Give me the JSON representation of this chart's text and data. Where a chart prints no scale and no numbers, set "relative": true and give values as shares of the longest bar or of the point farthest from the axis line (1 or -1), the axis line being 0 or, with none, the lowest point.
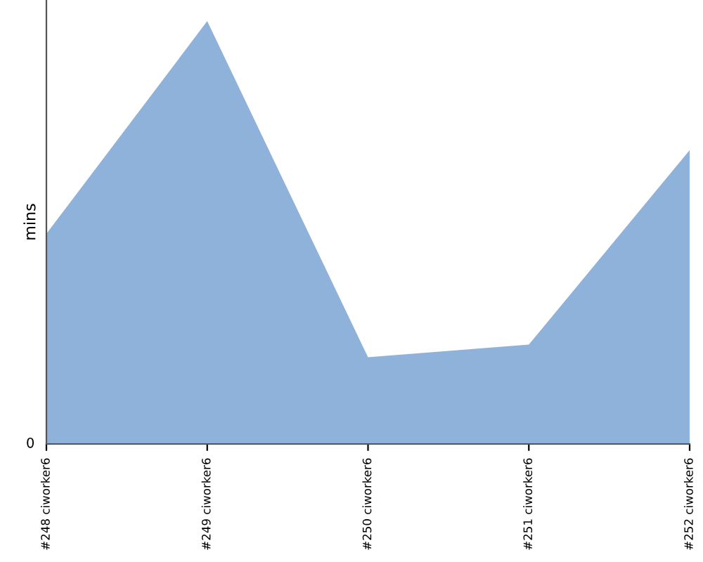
{
  "chart_data": {
    "type": "area",
    "ylabel": "mins",
    "relative": true,
    "categories": [
      "#248 ciworker6",
      "#249 ciworker6",
      "#250 ciworker6",
      "#251 ciworker6",
      "#252 ciworker6"
    ],
    "series": [
      {
        "color": "#8fb2da",
        "values": [
          0.497,
          1,
          0.205,
          0.235,
          0.695
        ]
      }
    ],
    "annotations": [
      "0"
    ],
    "grid": false,
    "legend": false
  }
}
